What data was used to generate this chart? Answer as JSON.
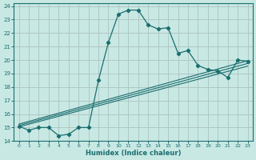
{
  "xlabel": "Humidex (Indice chaleur)",
  "xlim": [
    -0.5,
    23.5
  ],
  "ylim": [
    14,
    24.2
  ],
  "yticks": [
    14,
    15,
    16,
    17,
    18,
    19,
    20,
    21,
    22,
    23,
    24
  ],
  "xticks": [
    0,
    1,
    2,
    3,
    4,
    5,
    6,
    7,
    8,
    9,
    10,
    11,
    12,
    13,
    14,
    15,
    16,
    17,
    18,
    19,
    20,
    21,
    22,
    23
  ],
  "bg_color": "#c8e8e4",
  "grid_color": "#b0c8c4",
  "line_color": "#1a6e6e",
  "main_x": [
    0,
    1,
    2,
    3,
    4,
    5,
    6,
    7,
    8,
    9,
    10,
    11,
    12,
    13,
    14,
    15,
    16,
    17,
    18,
    19,
    20,
    21,
    22,
    23
  ],
  "main_y": [
    15.1,
    14.8,
    15.0,
    15.0,
    14.4,
    14.5,
    15.0,
    15.0,
    18.5,
    21.3,
    23.4,
    23.7,
    23.7,
    22.6,
    22.3,
    22.4,
    20.5,
    20.7,
    19.6,
    19.3,
    19.2,
    18.7,
    20.0,
    19.9
  ],
  "line2_x": [
    0,
    23
  ],
  "line2_y": [
    15.05,
    19.55
  ],
  "line3_x": [
    0,
    23
  ],
  "line3_y": [
    15.15,
    19.75
  ],
  "line4_x": [
    0,
    23
  ],
  "line4_y": [
    15.25,
    19.95
  ]
}
